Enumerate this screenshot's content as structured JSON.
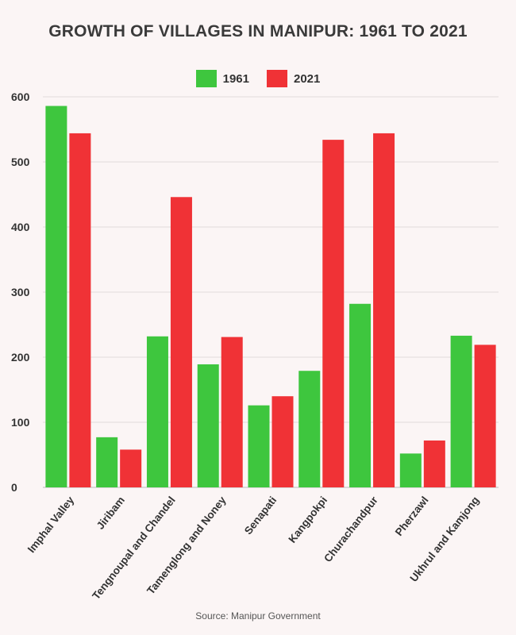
{
  "chart_data": {
    "type": "bar",
    "title": "GROWTH OF VILLAGES IN MANIPUR: 1961 TO 2021",
    "categories": [
      "Imphal Valley",
      "Jiribam",
      "Tengnoupal and Chandel",
      "Tamenglong and Noney",
      "Senapati",
      "Kangpokpi",
      "Churachandpur",
      "Pherzawl",
      "Ukhrul and Kamjong"
    ],
    "series": [
      {
        "name": "1961",
        "color": "#3ec63e",
        "values": [
          586,
          77,
          232,
          189,
          126,
          179,
          282,
          52,
          233
        ]
      },
      {
        "name": "2021",
        "color": "#f03236",
        "values": [
          544,
          58,
          446,
          231,
          140,
          534,
          544,
          72,
          219
        ]
      }
    ],
    "ylim": [
      0,
      600
    ],
    "yticks": [
      0,
      100,
      200,
      300,
      400,
      500,
      600
    ],
    "grid": true,
    "legend": "top-center",
    "xlabel": "",
    "ylabel": "",
    "source": "Source: Manipur Government"
  }
}
